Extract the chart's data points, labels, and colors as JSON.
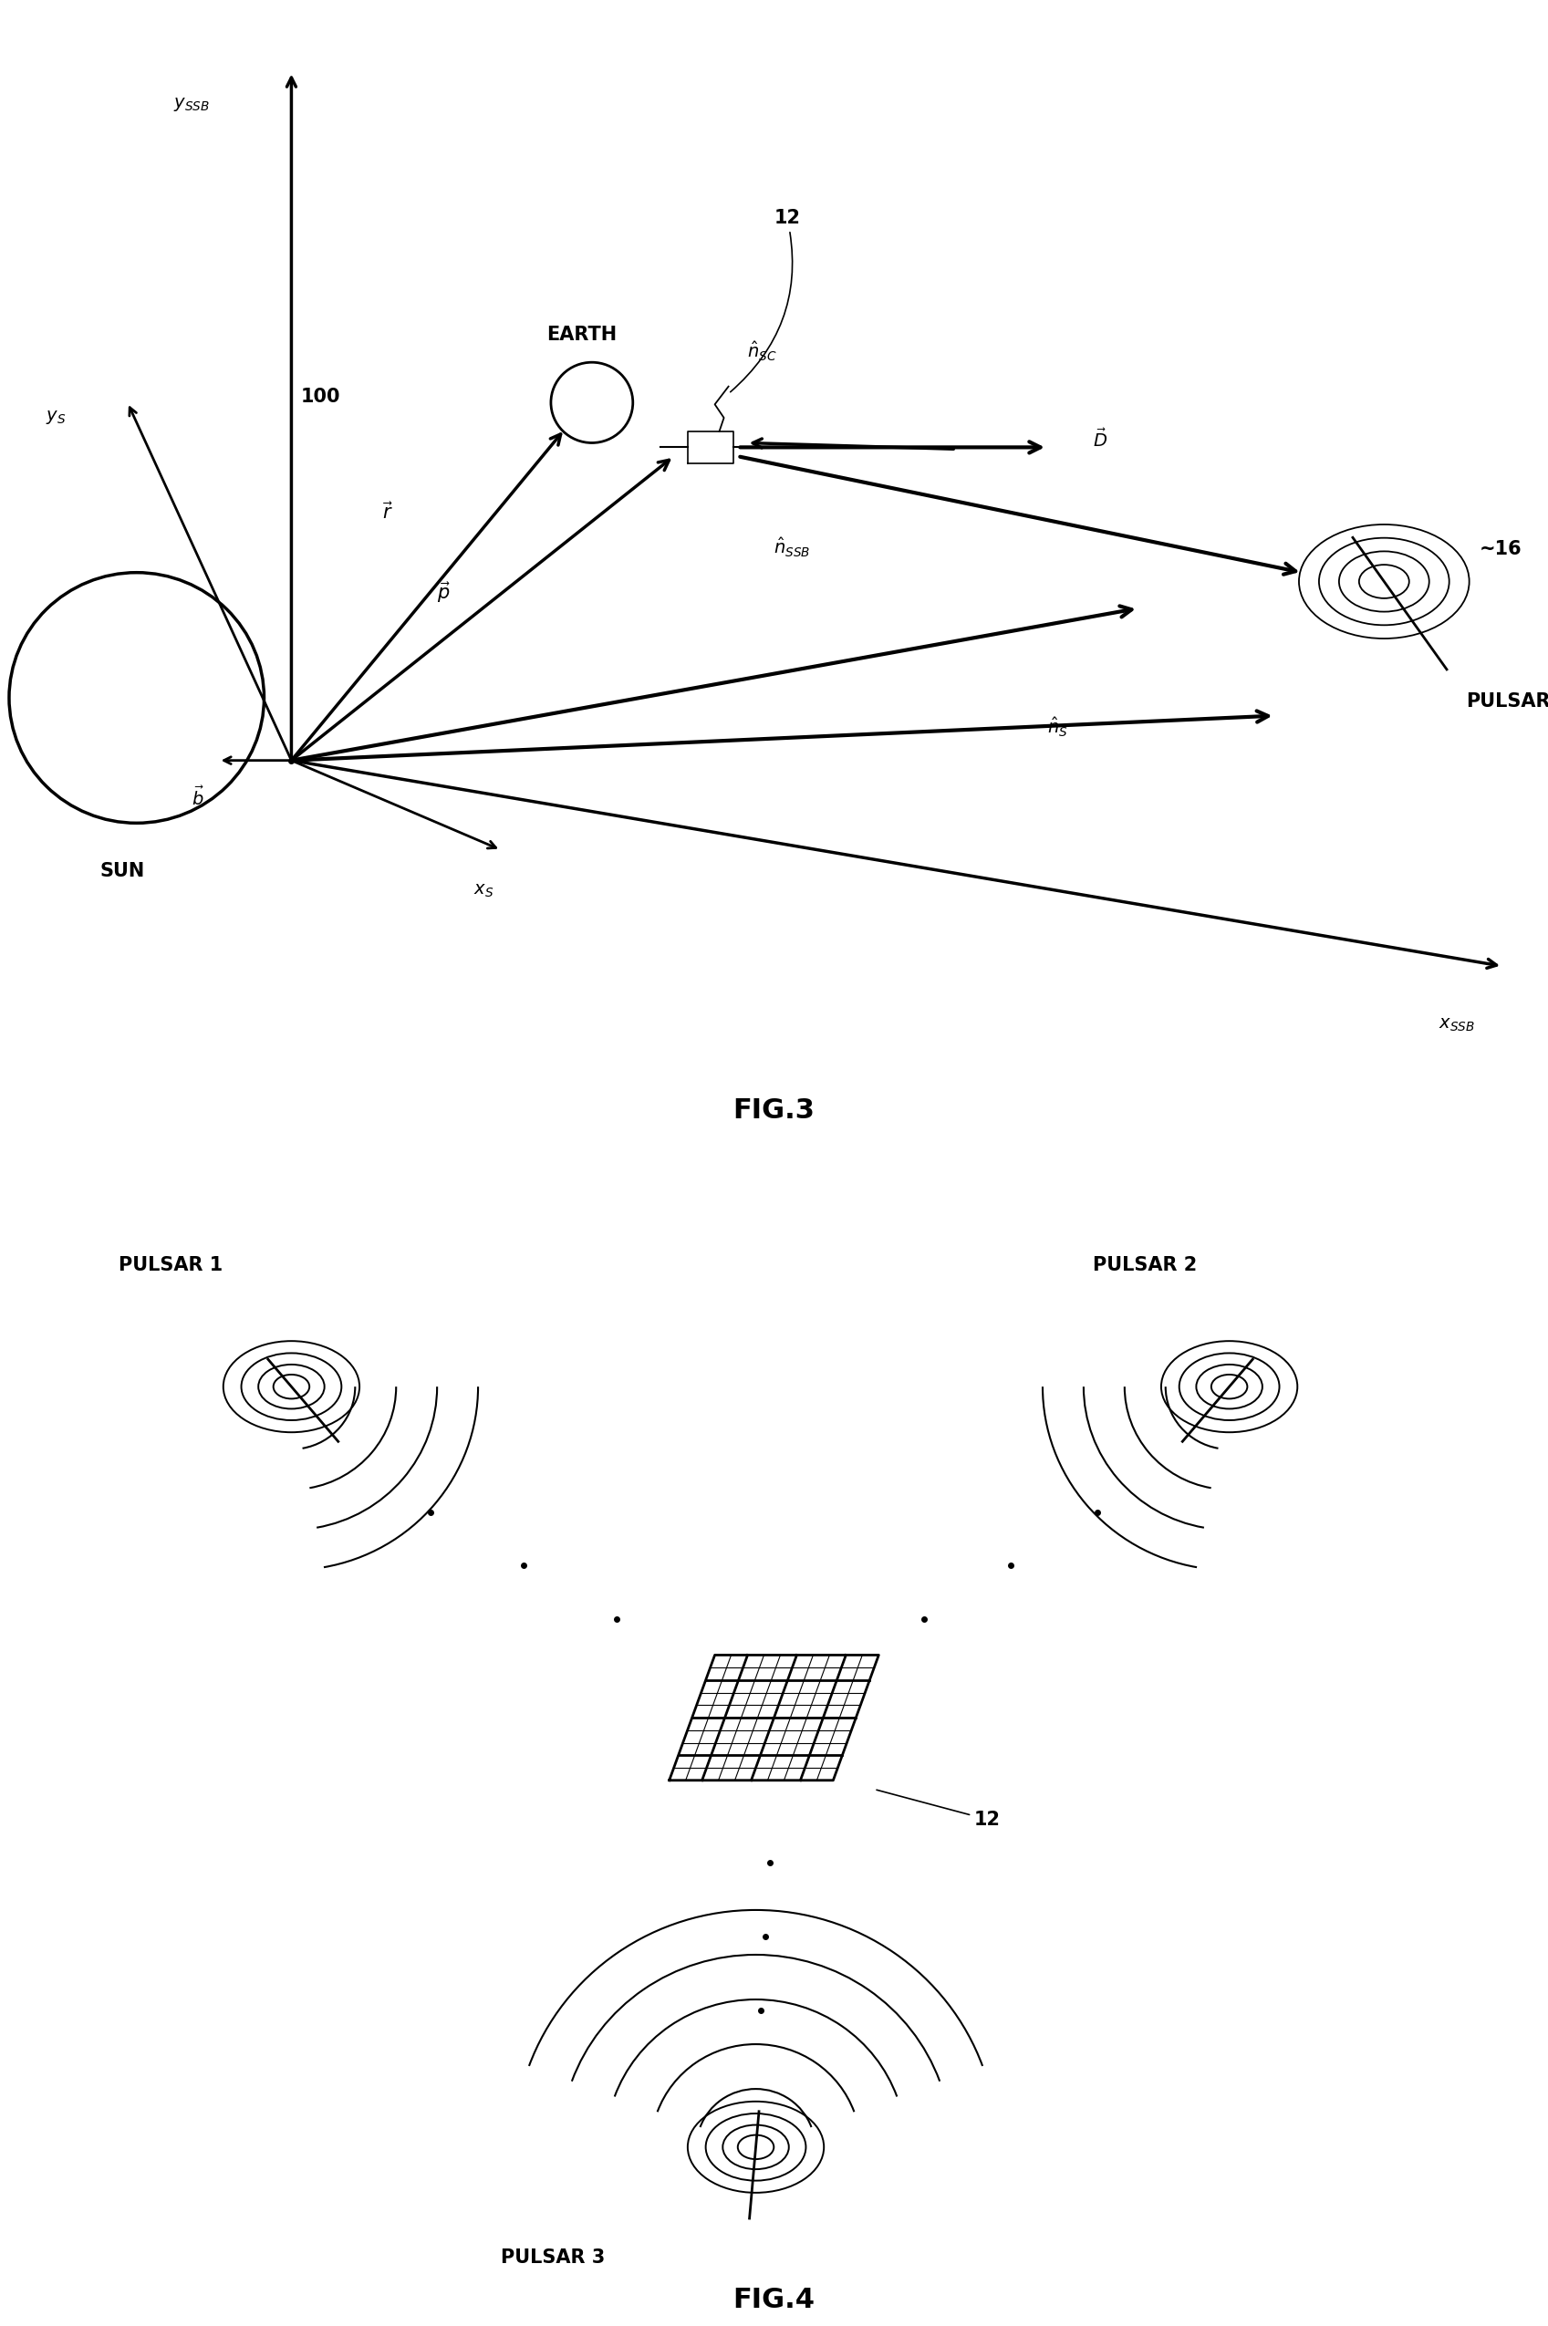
{
  "fig_width": 16.97,
  "fig_height": 25.5,
  "background_color": "#ffffff",
  "fig3_title": "FIG.3",
  "fig4_title": "FIG.4",
  "pulsar_label": "PULSAR",
  "earth_label": "EARTH",
  "sun_label": "SUN",
  "label_100": "100",
  "label_12_fig3": "12",
  "label_12_fig4": "12",
  "pulsar1_label": "PULSAR 1",
  "pulsar2_label": "PULSAR 2",
  "pulsar3_label": "PULSAR 3",
  "label_16": "~16",
  "lw_main": 2.0,
  "lw_vector": 2.5,
  "fs_label": 15,
  "fs_axis": 14,
  "fs_fig": 22
}
